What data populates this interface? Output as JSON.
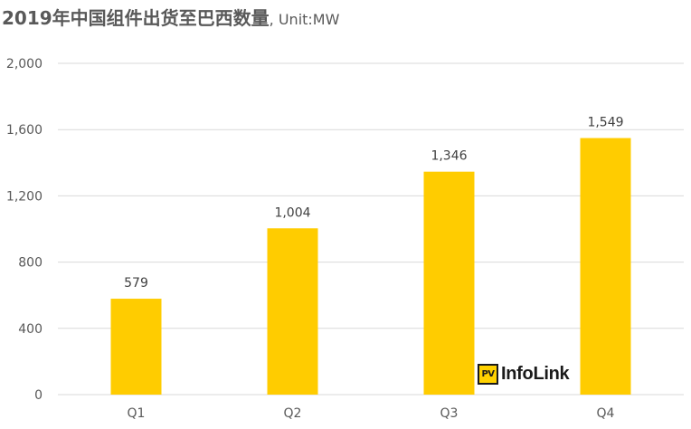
{
  "title": {
    "main": "2019年中国组件出货至巴西数量",
    "unit": ", Unit:MW"
  },
  "logo": {
    "badge": "PV",
    "text": "InfoLink"
  },
  "colors": {
    "bar": "#FFCC00",
    "grid": "#D9D9D9",
    "text": "#595959"
  },
  "chart_data": {
    "type": "bar",
    "title": "2019年中国组件出货至巴西数量, Unit:MW",
    "categories": [
      "Q1",
      "Q2",
      "Q3",
      "Q4"
    ],
    "values": [
      579,
      1004,
      1346,
      1549
    ],
    "data_labels": [
      "579",
      "1,004",
      "1,346",
      "1,549"
    ],
    "ylim": [
      0,
      2000
    ],
    "yticks": [
      0,
      400,
      800,
      1200,
      1600,
      2000
    ],
    "ytick_labels": [
      "0",
      "400",
      "800",
      "1,200",
      "1,600",
      "2,000"
    ],
    "xlabel": "",
    "ylabel": "",
    "grid": true,
    "legend": "none"
  }
}
